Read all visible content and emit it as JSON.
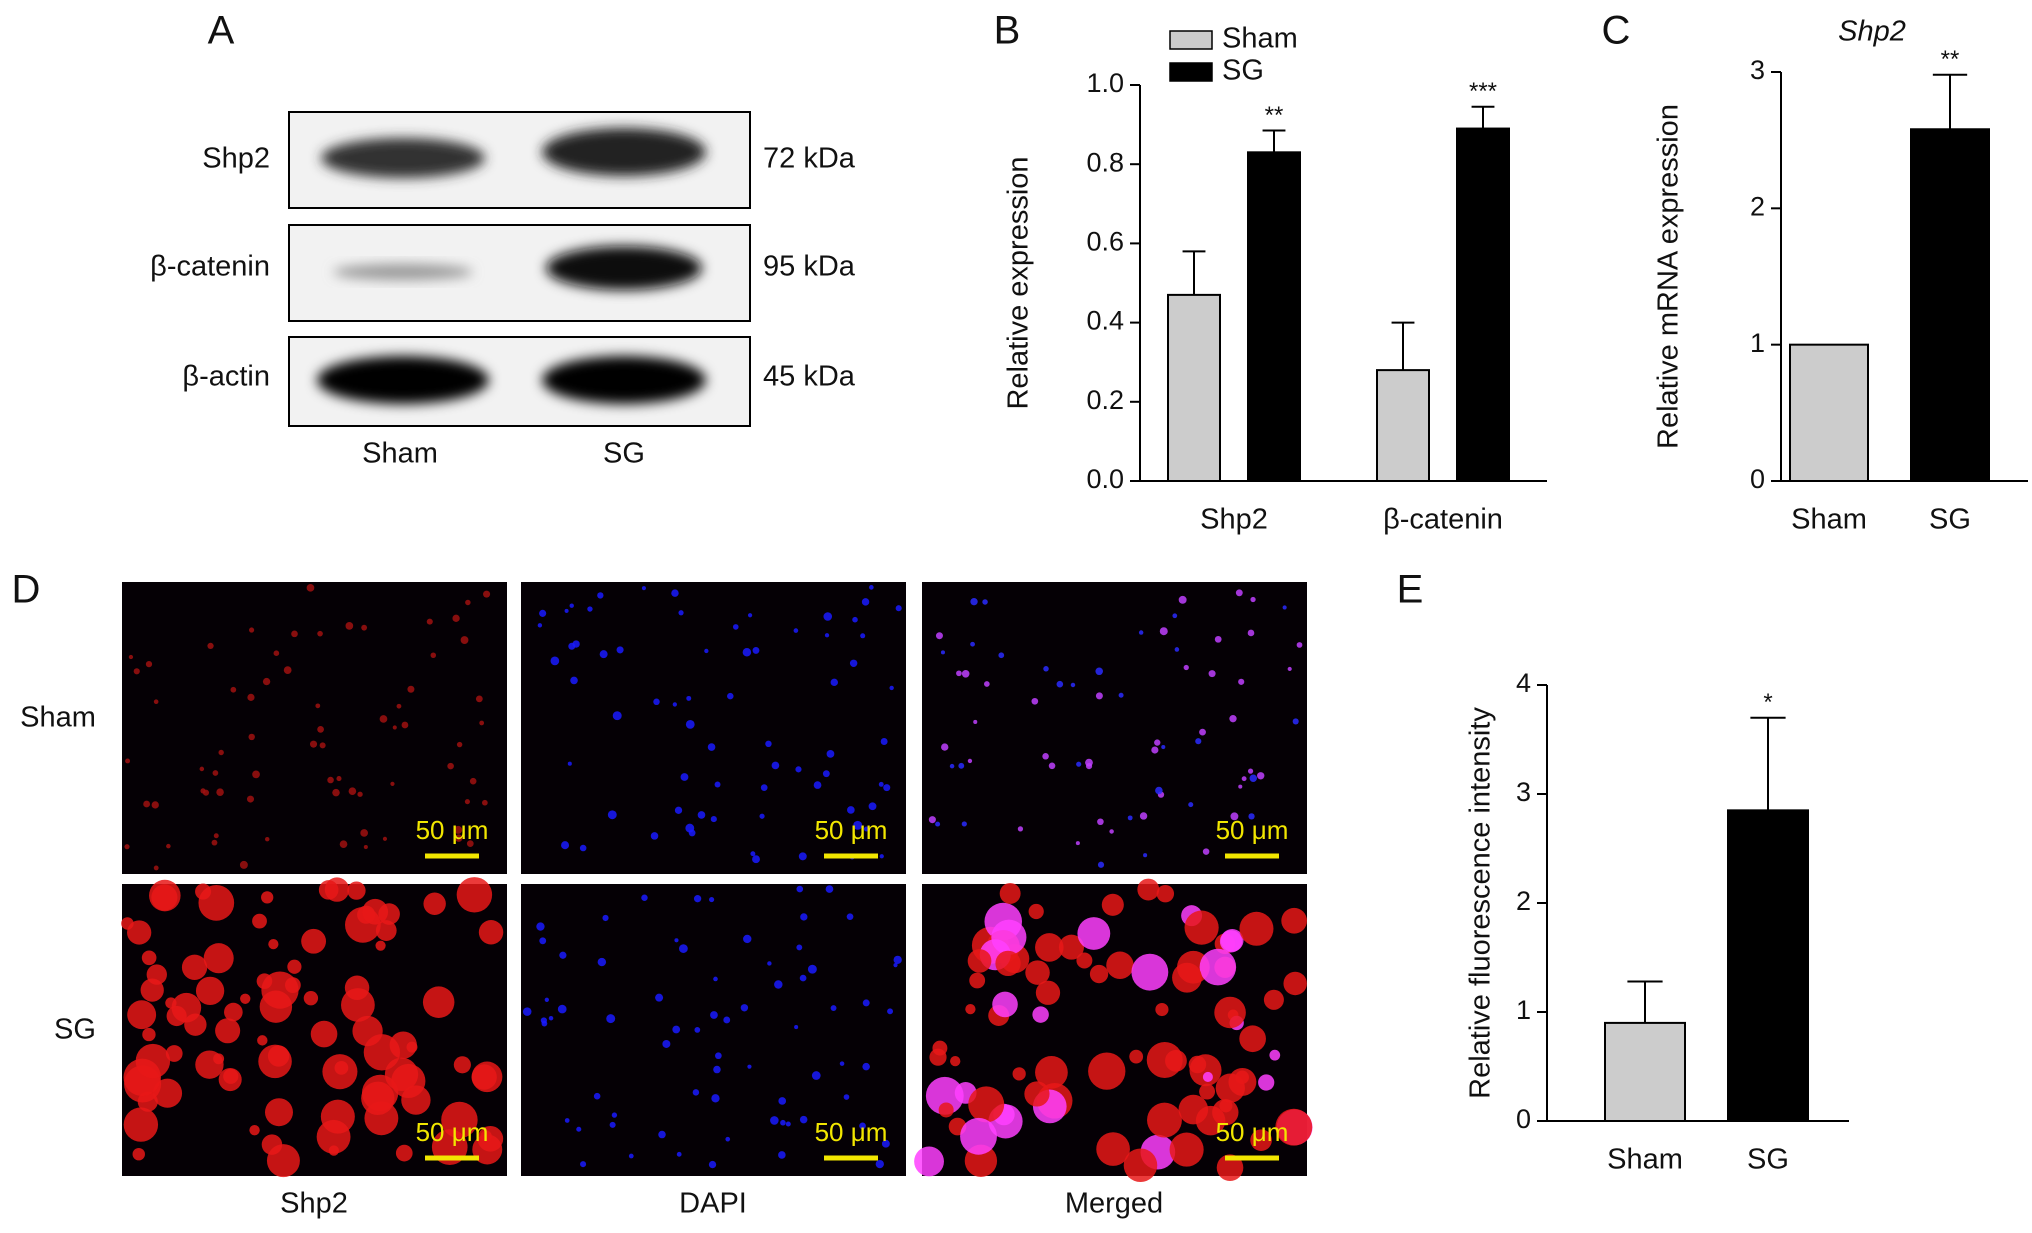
{
  "panel_labels": [
    "A",
    "B",
    "C",
    "D",
    "E"
  ],
  "blot": {
    "rows": [
      "Shp2",
      "β-catenin",
      "β-actin"
    ],
    "sizes": [
      "72 kDa",
      "95 kDa",
      "45 kDa"
    ],
    "lanes": [
      "Sham",
      "SG"
    ]
  },
  "microscopy": {
    "rows": [
      "Sham",
      "SG"
    ],
    "columns": [
      "Shp2",
      "DAPI",
      "Merged"
    ],
    "scale_bar": "50 μm"
  },
  "chart_data": [
    {
      "type": "bar",
      "y_label": "Relative expression",
      "categories": [
        "Shp2",
        "β-catenin"
      ],
      "series": [
        {
          "name": "Sham",
          "color": "#cccccc",
          "values": [
            0.47,
            0.28
          ],
          "errors": [
            0.11,
            0.12
          ],
          "annotations": [
            null,
            null
          ]
        },
        {
          "name": "SG",
          "color": "#000000",
          "values": [
            0.83,
            0.89
          ],
          "errors": [
            0.055,
            0.055
          ],
          "annotations": [
            "**",
            "***"
          ]
        }
      ],
      "ylim": [
        0,
        1
      ],
      "yticks": [
        {
          "value": 0,
          "label": "0.0"
        },
        0.2,
        0.4,
        0.6,
        0.8,
        {
          "value": 1,
          "label": "1.0"
        }
      ],
      "legend": "top-left"
    },
    {
      "type": "bar",
      "title": "Shp2",
      "y_label": "Relative mRNA expression",
      "categories": [
        "Sham",
        "SG"
      ],
      "values": [
        1,
        2.58
      ],
      "errors": [
        null,
        0.4
      ],
      "annotations": [
        null,
        "**"
      ],
      "colors": [
        "#cccccc",
        "#000000"
      ],
      "ylim": [
        0,
        3
      ],
      "yticks": [
        0,
        1,
        2,
        3
      ]
    },
    {
      "type": "bar",
      "y_label": "Relative fluorescence intensity",
      "categories": [
        "Sham",
        "SG"
      ],
      "values": [
        0.9,
        2.85
      ],
      "errors": [
        0.38,
        0.85
      ],
      "annotations": [
        null,
        "*"
      ],
      "colors": [
        "#cccccc",
        "#000000"
      ],
      "ylim": [
        0,
        4
      ],
      "yticks": [
        0,
        1,
        2,
        3,
        4
      ]
    }
  ]
}
